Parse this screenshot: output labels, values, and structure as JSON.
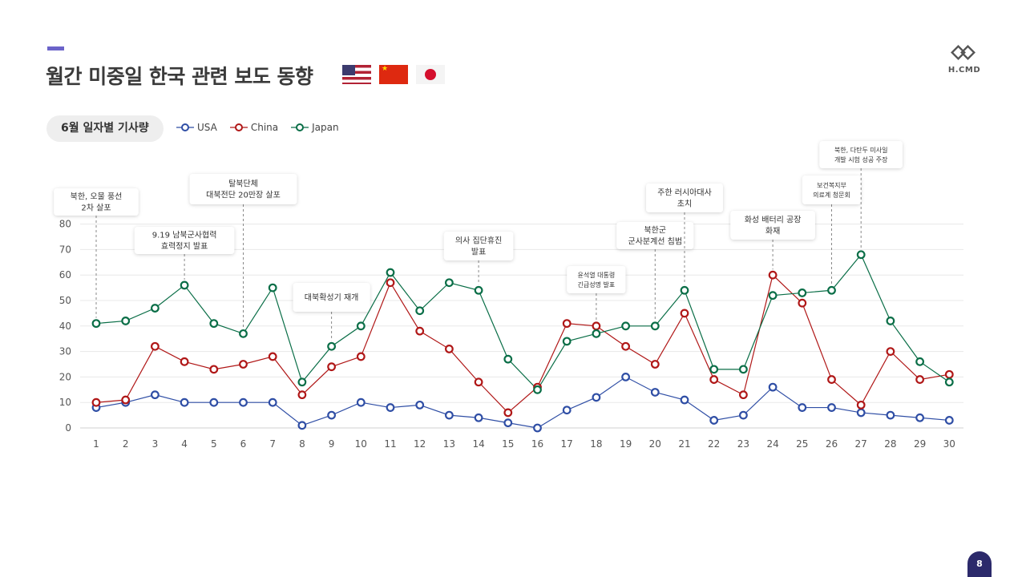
{
  "header": {
    "title": "월간 미중일 한국 관련 보도 동향",
    "flags": [
      "us-flag-icon",
      "china-flag-icon",
      "japan-flag-icon"
    ]
  },
  "logo": {
    "text": "H.CMD",
    "icon": "hcmd-logo-icon"
  },
  "pill": {
    "label": "6월 일자별 기사량"
  },
  "page": {
    "number": "8"
  },
  "colors": {
    "USA": "#2f4ea5",
    "China": "#b01717",
    "Japan": "#0a6e47",
    "accent": "#6b63c9",
    "page_badge": "#2c2a6b"
  },
  "chart_data": {
    "type": "line",
    "title": "6월 일자별 기사량",
    "xlabel": "",
    "ylabel": "",
    "ylim": [
      0,
      80
    ],
    "yticks": [
      0,
      10,
      20,
      30,
      40,
      50,
      60,
      70,
      80
    ],
    "grid": true,
    "legend_position": "top-left",
    "x": [
      1,
      2,
      3,
      4,
      5,
      6,
      7,
      8,
      9,
      10,
      11,
      12,
      13,
      14,
      15,
      16,
      17,
      18,
      19,
      20,
      21,
      22,
      23,
      24,
      25,
      26,
      27,
      28,
      29,
      30
    ],
    "series": [
      {
        "name": "USA",
        "values": [
          8,
          10,
          13,
          10,
          10,
          10,
          10,
          1,
          5,
          10,
          8,
          9,
          5,
          4,
          2,
          0,
          7,
          12,
          20,
          14,
          11,
          3,
          5,
          16,
          8,
          8,
          6,
          5,
          4,
          3
        ]
      },
      {
        "name": "China",
        "values": [
          10,
          11,
          32,
          26,
          23,
          25,
          28,
          13,
          24,
          28,
          57,
          38,
          31,
          18,
          6,
          16,
          41,
          40,
          32,
          25,
          45,
          19,
          13,
          60,
          49,
          19,
          9,
          30,
          19,
          21
        ]
      },
      {
        "name": "Japan",
        "values": [
          41,
          42,
          47,
          56,
          41,
          37,
          55,
          18,
          32,
          40,
          61,
          46,
          57,
          54,
          27,
          15,
          34,
          37,
          40,
          40,
          54,
          23,
          23,
          52,
          53,
          54,
          68,
          42,
          26,
          18
        ]
      }
    ],
    "annotations": [
      {
        "x": 1,
        "lines": [
          "북한, 오물 풍선",
          "2차 살포"
        ]
      },
      {
        "x": 4,
        "lines": [
          "9.19 남북군사협력",
          "효력정지 발표"
        ]
      },
      {
        "x": 6,
        "lines": [
          "탈북단체",
          "대북전단 20만장 살포"
        ]
      },
      {
        "x": 9,
        "lines": [
          "대북확성기 재개"
        ]
      },
      {
        "x": 14,
        "lines": [
          "의사 집단휴진",
          "발표"
        ]
      },
      {
        "x": 18,
        "lines": [
          "윤석열 대통령",
          "긴급성명 발표"
        ]
      },
      {
        "x": 20,
        "lines": [
          "북한군",
          "군사분계선 침범"
        ]
      },
      {
        "x": 21,
        "lines": [
          "주한 러시아대사",
          "초치"
        ]
      },
      {
        "x": 24,
        "lines": [
          "화성 배터리 공장",
          "화재"
        ]
      },
      {
        "x": 26,
        "lines": [
          "보건복지부",
          "의료계 청문회"
        ]
      },
      {
        "x": 27,
        "lines": [
          "북한, 다탄두 미사일",
          "개발 시험 성공 주장"
        ]
      }
    ]
  }
}
